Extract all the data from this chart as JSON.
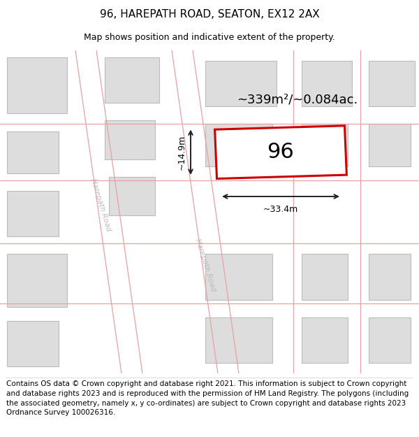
{
  "title": "96, HAREPATH ROAD, SEATON, EX12 2AX",
  "subtitle": "Map shows position and indicative extent of the property.",
  "footer": "Contains OS data © Crown copyright and database right 2021. This information is subject to Crown copyright and database rights 2023 and is reproduced with the permission of HM Land Registry. The polygons (including the associated geometry, namely x, y co-ordinates) are subject to Crown copyright and database rights 2023 Ordnance Survey 100026316.",
  "area_label": "~339m²/~0.084ac.",
  "width_label": "~33.4m",
  "height_label": "~14.9m",
  "number_label": "96",
  "bg_color": "#ffffff",
  "map_bg": "#ffffff",
  "road_fill": "#ffffff",
  "building_color": "#dddddd",
  "building_outline": "#bbbbbb",
  "road_line_color": "#e8a0a0",
  "property_outline": "#cc0000",
  "dim_line_color": "#222222",
  "title_fontsize": 11,
  "subtitle_fontsize": 9,
  "footer_fontsize": 7.5,
  "label_color": "#cccccc",
  "road_label_color": "#bbbbbb"
}
